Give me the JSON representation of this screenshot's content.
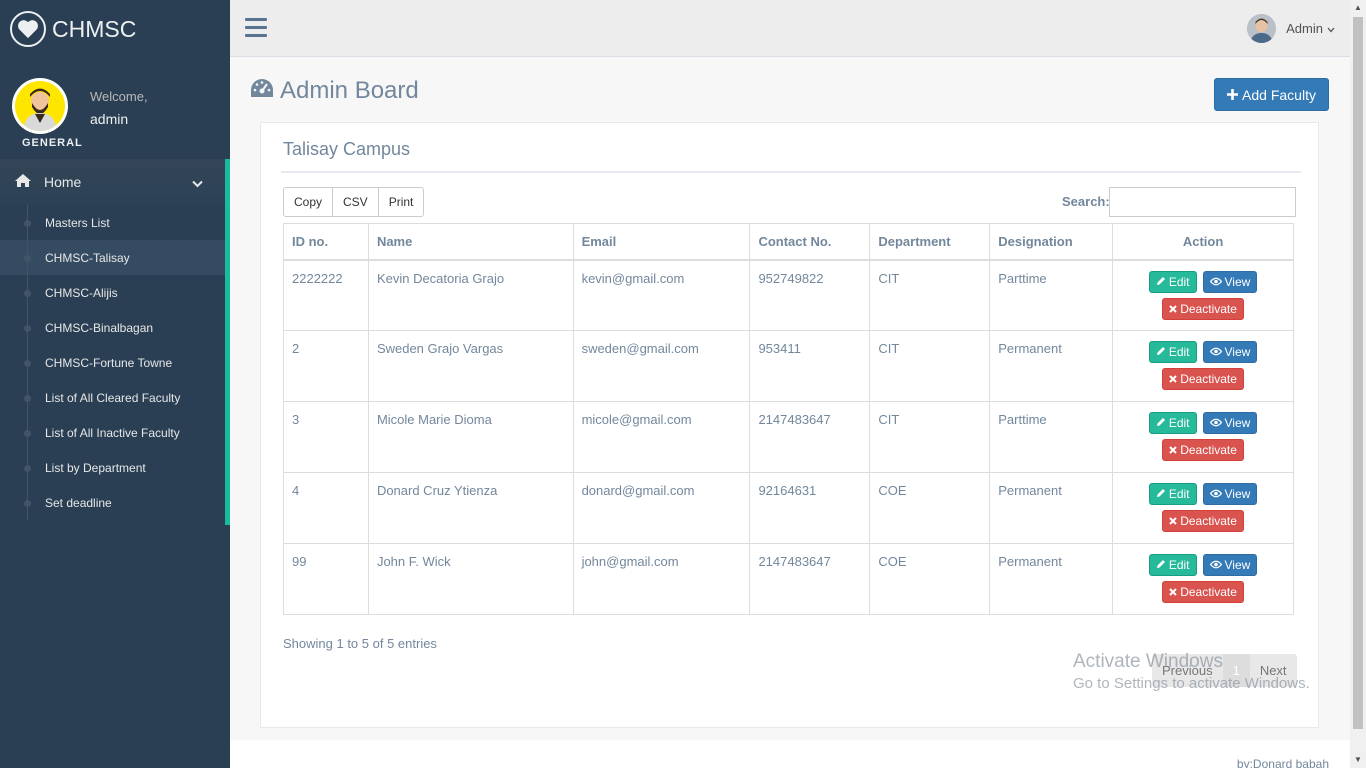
{
  "brand": {
    "name": "CHMSC",
    "icon": "heart-icon"
  },
  "profile": {
    "welcome": "Welcome,",
    "name": "admin",
    "role": "GENERAL"
  },
  "sidebar": {
    "home_label": "Home",
    "items": [
      {
        "label": "Masters List",
        "active": false
      },
      {
        "label": "CHMSC-Talisay",
        "active": true
      },
      {
        "label": "CHMSC-Alijis",
        "active": false
      },
      {
        "label": "CHMSC-Binalbagan",
        "active": false
      },
      {
        "label": "CHMSC-Fortune Towne",
        "active": false
      },
      {
        "label": "List of All Cleared Faculty",
        "active": false
      },
      {
        "label": "List of All Inactive Faculty",
        "active": false
      },
      {
        "label": "List by Department",
        "active": false
      },
      {
        "label": "Set deadline",
        "active": false
      }
    ]
  },
  "topbar": {
    "user": "Admin"
  },
  "page": {
    "title": "Admin Board",
    "add_button": "Add Faculty"
  },
  "panel": {
    "title": "Talisay Campus",
    "export_buttons": [
      "Copy",
      "CSV",
      "Print"
    ],
    "search_label": "Search:",
    "search_value": "",
    "columns": [
      "ID no.",
      "Name",
      "Email",
      "Contact No.",
      "Department",
      "Designation",
      "Action"
    ],
    "rows": [
      {
        "id": "2222222",
        "name": "Kevin Decatoria Grajo",
        "email": "kevin@gmail.com",
        "contact": "952749822",
        "department": "CIT",
        "designation": "Parttime"
      },
      {
        "id": "2",
        "name": "Sweden Grajo Vargas",
        "email": "sweden@gmail.com",
        "contact": "953411",
        "department": "CIT",
        "designation": "Permanent"
      },
      {
        "id": "3",
        "name": "Micole Marie Dioma",
        "email": "micole@gmail.com",
        "contact": "2147483647",
        "department": "CIT",
        "designation": "Parttime"
      },
      {
        "id": "4",
        "name": "Donard Cruz Ytienza",
        "email": "donard@gmail.com",
        "contact": "92164631",
        "department": "COE",
        "designation": "Permanent"
      },
      {
        "id": "99",
        "name": "John F. Wick",
        "email": "john@gmail.com",
        "contact": "2147483647",
        "department": "COE",
        "designation": "Permanent"
      }
    ],
    "actions": {
      "edit": "Edit",
      "view": "View",
      "deactivate": "Deactivate"
    },
    "entries_info": "Showing 1 to 5 of 5 entries",
    "pager": {
      "previous": "Previous",
      "current": "1",
      "next": "Next"
    }
  },
  "watermark": {
    "line1": "Activate Windows",
    "line2": "Go to Settings to activate Windows."
  },
  "footer": {
    "text": "by:Donard babah"
  },
  "colors": {
    "sidebar": "#2a3f54",
    "accent": "#1abb9c",
    "primary": "#337ab7",
    "success": "#26b99a",
    "danger": "#d9534f"
  }
}
